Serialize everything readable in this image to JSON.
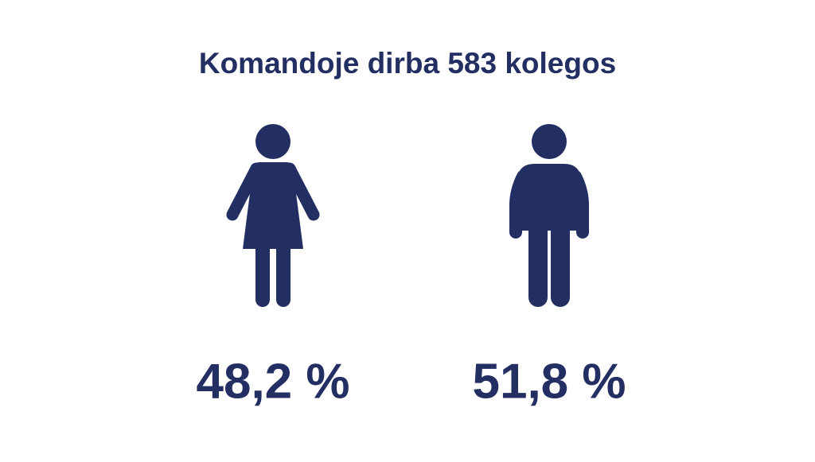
{
  "title": "Komandoje dirba 583 kolegos",
  "figures": [
    {
      "label": "48,2 %"
    },
    {
      "label": "51,8 %"
    }
  ]
}
